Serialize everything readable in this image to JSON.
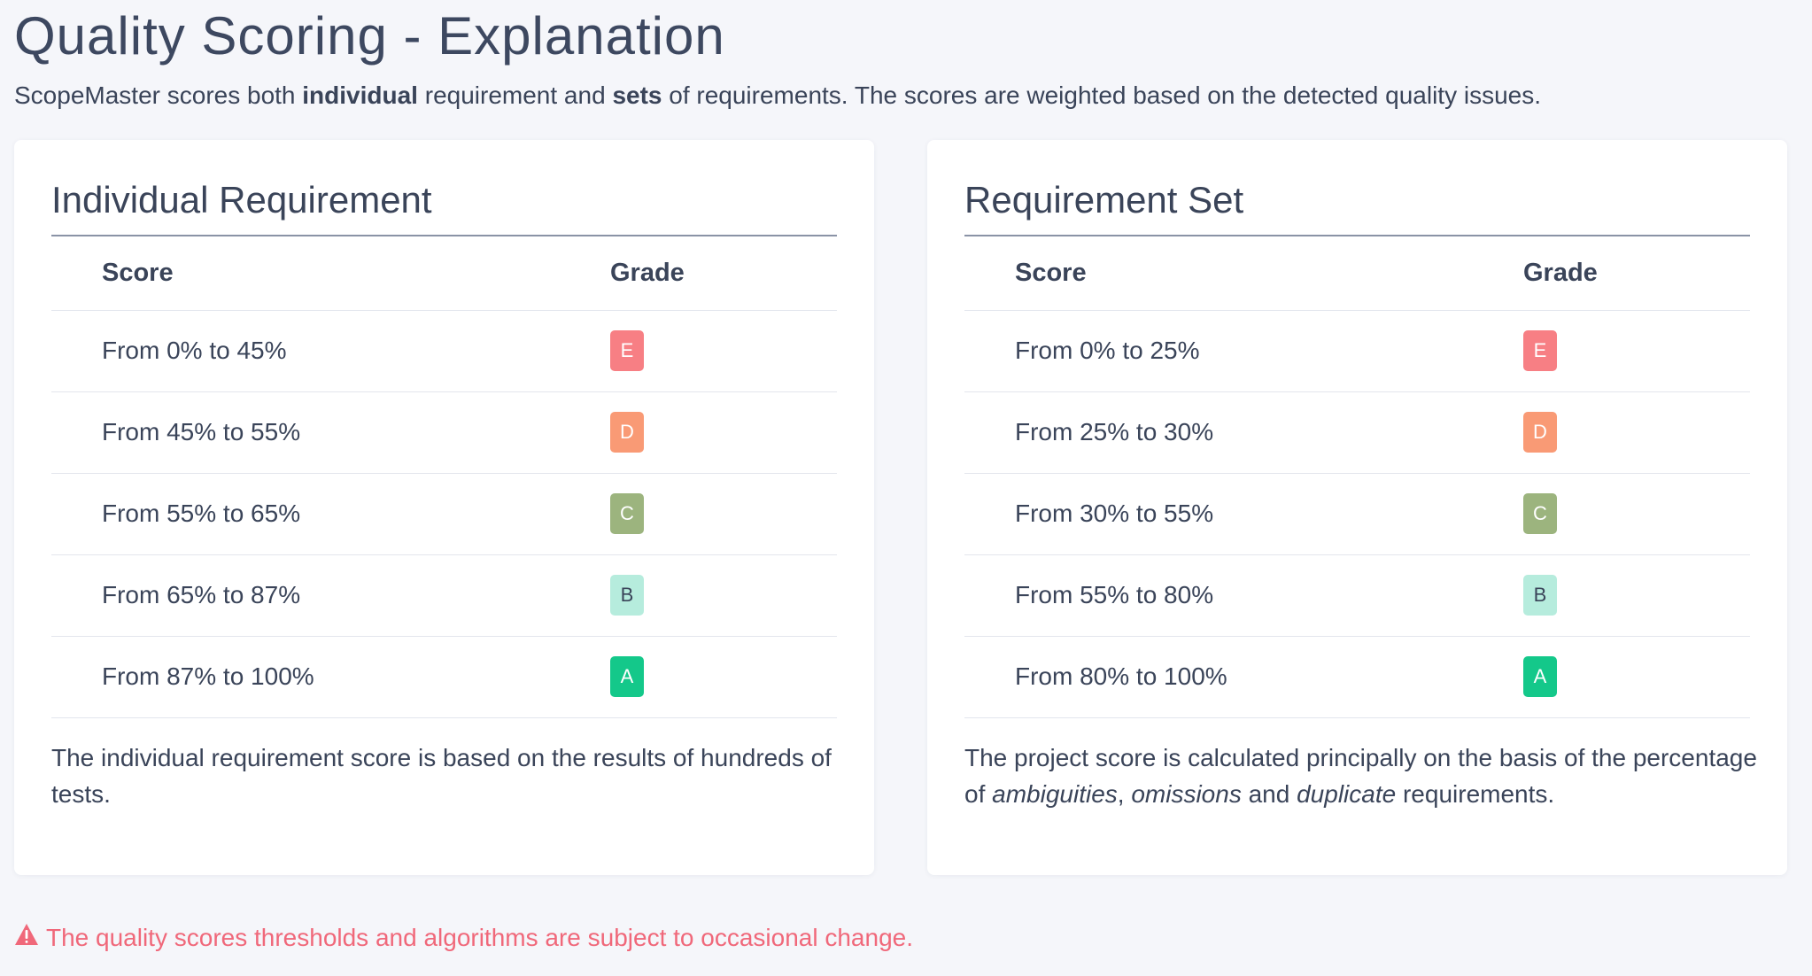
{
  "page": {
    "title": "Quality Scoring - Explanation",
    "intro": {
      "before": "ScopeMaster scores both ",
      "bold1": "individual",
      "middle": " requirement and ",
      "bold2": "sets",
      "after": " of requirements. The scores are weighted based on the detected quality issues."
    },
    "warning": "The quality scores thresholds and algorithms are subject to occasional change.",
    "warning_icon": "warning-triangle-icon"
  },
  "colors": {
    "E": "#f77f84",
    "D": "#f99a75",
    "C": "#9cb47e",
    "B": "#b6ecdd",
    "A": "#14c88a",
    "warning": "#f0687a"
  },
  "individual": {
    "title": "Individual Requirement",
    "headers": {
      "score": "Score",
      "grade": "Grade"
    },
    "rows": [
      {
        "score": "From 0% to 45%",
        "grade": "E"
      },
      {
        "score": "From 45% to 55%",
        "grade": "D"
      },
      {
        "score": "From 55% to 65%",
        "grade": "C"
      },
      {
        "score": "From 65% to 87%",
        "grade": "B"
      },
      {
        "score": "From 87% to 100%",
        "grade": "A"
      }
    ],
    "note": "The individual requirement score is based on the results of hundreds of tests."
  },
  "set": {
    "title": "Requirement Set",
    "headers": {
      "score": "Score",
      "grade": "Grade"
    },
    "rows": [
      {
        "score": "From 0% to 25%",
        "grade": "E"
      },
      {
        "score": "From 25% to 30%",
        "grade": "D"
      },
      {
        "score": "From 30% to 55%",
        "grade": "C"
      },
      {
        "score": "From 55% to 80%",
        "grade": "B"
      },
      {
        "score": "From 80% to 100%",
        "grade": "A"
      }
    ],
    "note": {
      "p1": "The project score is calculated principally on the basis of the percentage of ",
      "em1": "ambiguities",
      "p2": ", ",
      "em2": "omissions",
      "p3": " and ",
      "em3": "duplicate",
      "p4": " requirements."
    }
  }
}
